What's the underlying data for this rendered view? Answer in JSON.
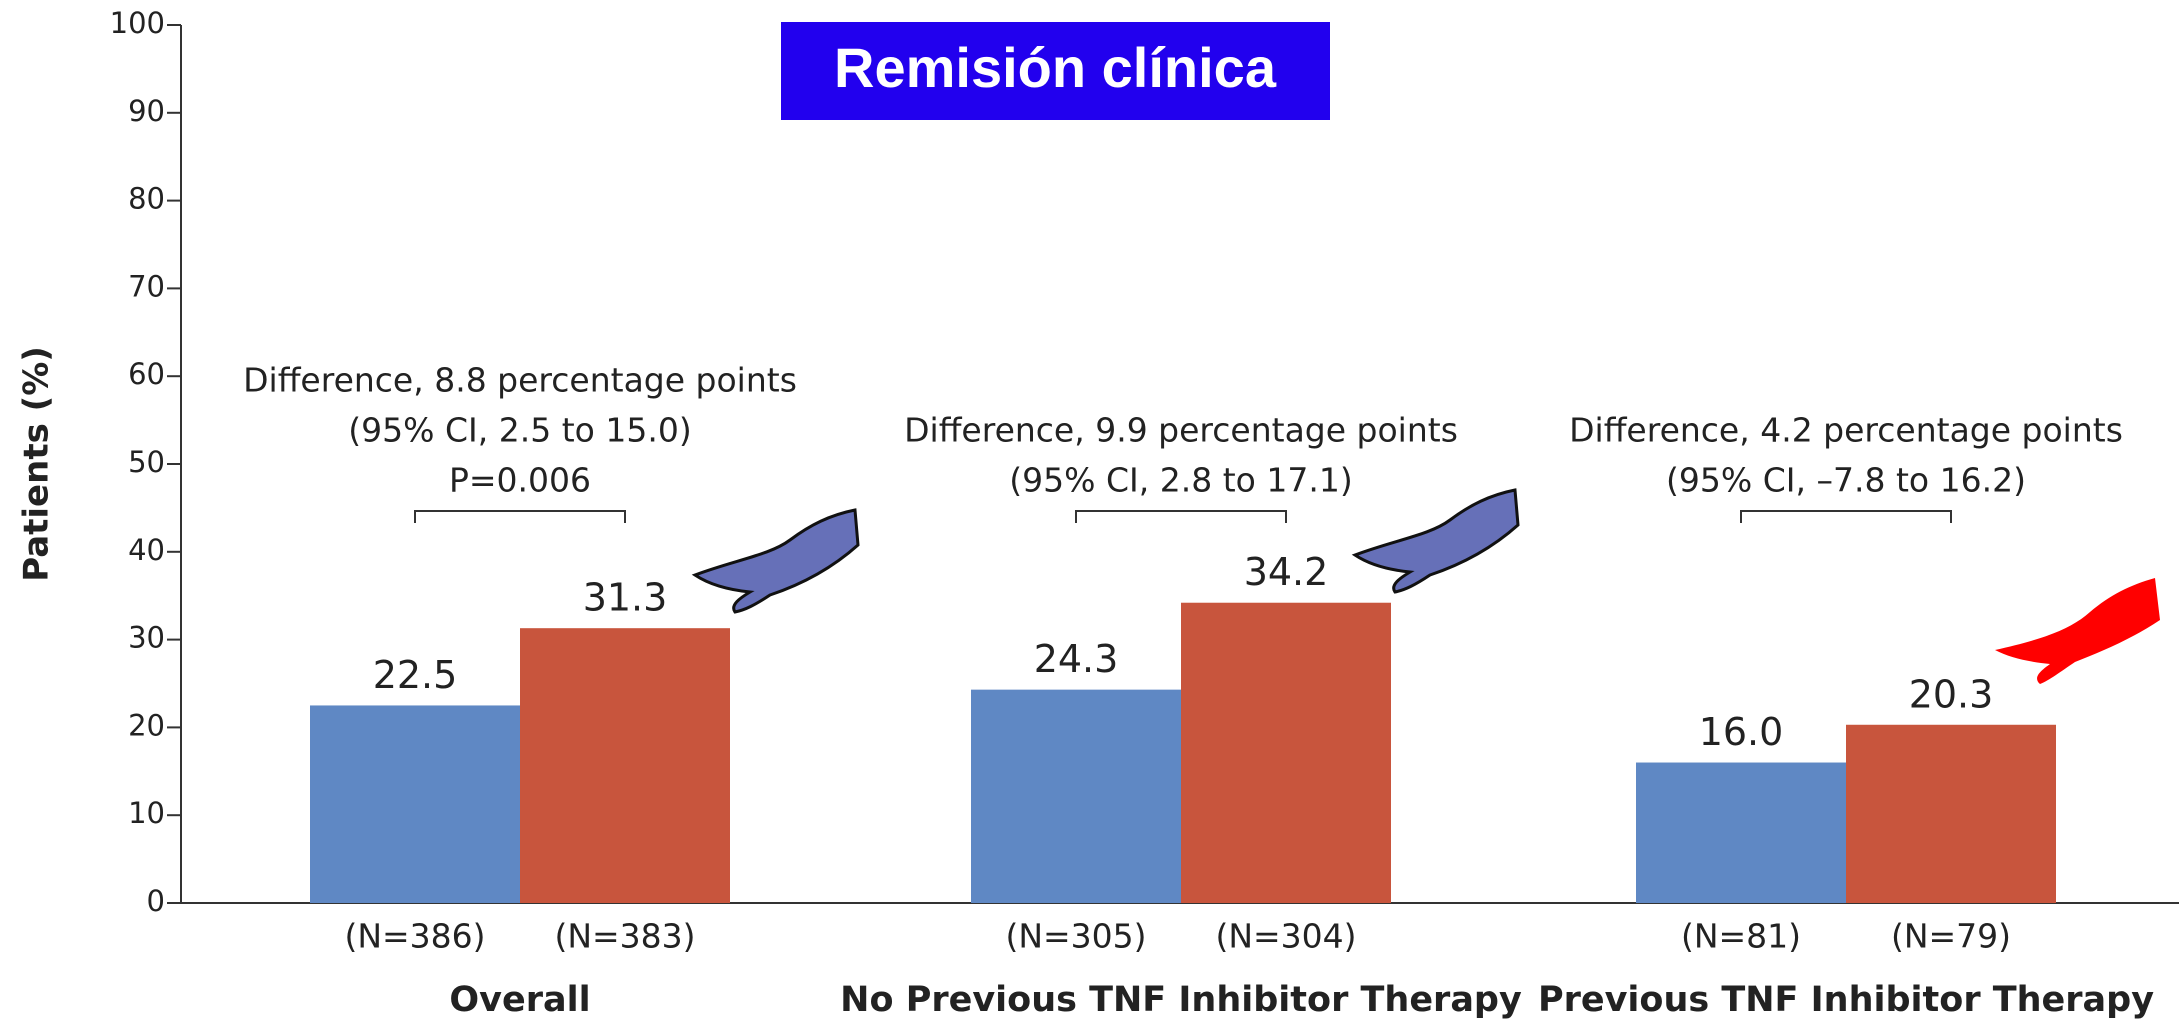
{
  "chart_data": {
    "type": "bar",
    "title": "Remisión clínica",
    "y_label": "Patients (%)",
    "categories": [
      "Overall",
      "No Previous TNF Inhibitor Therapy",
      "Previous TNF Inhibitor Therapy"
    ],
    "annotations": [
      [
        "Difference, 8.8 percentage points",
        "(95% CI, 2.5 to 15.0)",
        "P=0.006"
      ],
      [
        "Difference, 9.9 percentage points",
        "(95% CI, 2.8 to 17.1)"
      ],
      [
        "Difference, 4.2 percentage points",
        "(95% CI, –7.8 to 16.2)"
      ]
    ],
    "series": [
      {
        "color": "#5f88c4",
        "values": [
          22.5,
          24.3,
          16.0
        ],
        "value_labels": [
          "22.5",
          "24.3",
          "16.0"
        ],
        "n_labels": [
          "(N=386)",
          "(N=305)",
          "(N=81)"
        ]
      },
      {
        "color": "#c8553d",
        "values": [
          31.3,
          34.2,
          20.3
        ],
        "value_labels": [
          "31.3",
          "34.2",
          "20.3"
        ],
        "n_labels": [
          "(N=383)",
          "(N=304)",
          "(N=79)"
        ]
      }
    ],
    "ylim": [
      0,
      100
    ],
    "yticks": [
      0,
      10,
      20,
      30,
      40,
      50,
      60,
      70,
      80,
      90,
      100
    ],
    "grid": false
  }
}
